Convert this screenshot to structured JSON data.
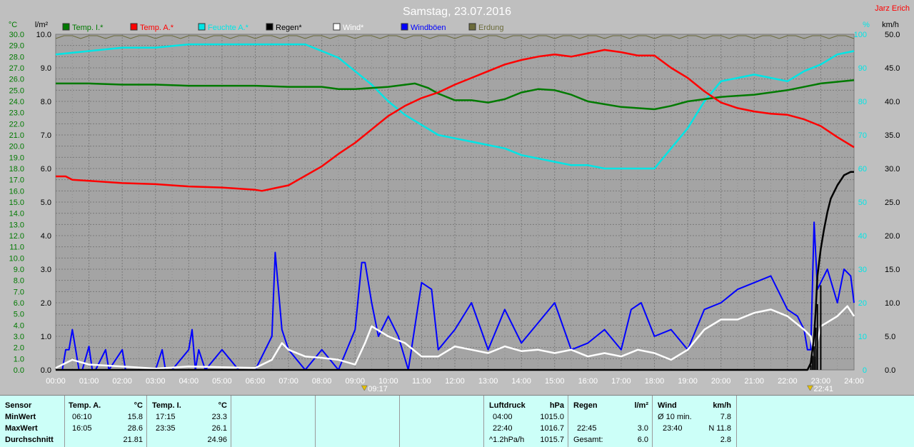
{
  "title": "Samstag, 23.07.2016",
  "author": "Jarz Erich",
  "axes": {
    "left1_unit": "°C",
    "left2_unit": "l/m²",
    "right1_unit": "%",
    "right2_unit": "km/h",
    "temp_ticks": [
      "0.0",
      "1.0",
      "2.0",
      "3.0",
      "4.0",
      "5.0",
      "6.0",
      "7.0",
      "8.0",
      "9.0",
      "10.0",
      "11.0",
      "12.0",
      "13.0",
      "14.0",
      "15.0",
      "16.0",
      "17.0",
      "18.0",
      "19.0",
      "20.0",
      "21.0",
      "22.0",
      "23.0",
      "24.0",
      "25.0",
      "26.0",
      "27.0",
      "28.0",
      "29.0",
      "30.0"
    ],
    "rain_ticks": [
      "0.0",
      "1.0",
      "2.0",
      "3.0",
      "4.0",
      "5.0",
      "6.0",
      "7.0",
      "8.0",
      "9.0",
      "10.0"
    ],
    "hum_ticks": [
      "0",
      "10",
      "20",
      "30",
      "40",
      "50",
      "60",
      "70",
      "80",
      "90",
      "100"
    ],
    "wind_ticks": [
      "0.0",
      "5.0",
      "10.0",
      "15.0",
      "20.0",
      "25.0",
      "30.0",
      "35.0",
      "40.0",
      "45.0",
      "50.0"
    ],
    "x_ticks": [
      "00:00",
      "01:00",
      "02:00",
      "03:00",
      "04:00",
      "05:00",
      "06:00",
      "07:00",
      "08:00",
      "09:00",
      "10:00",
      "11:00",
      "12:00",
      "13:00",
      "14:00",
      "15:00",
      "16:00",
      "17:00",
      "18:00",
      "19:00",
      "20:00",
      "21:00",
      "22:00",
      "23:00",
      "24:00"
    ]
  },
  "legend": [
    {
      "label": "Temp. I.*",
      "color": "#007a00"
    },
    {
      "label": "Temp. A.*",
      "color": "#ff0000"
    },
    {
      "label": "Feuchte A.*",
      "color": "#00e5e5"
    },
    {
      "label": "Regen*",
      "color": "#000000"
    },
    {
      "label": "Wind*",
      "color": "#ffffff"
    },
    {
      "label": "Windböen",
      "color": "#0000ff"
    },
    {
      "label": "Erdung",
      "color": "#6b6b3a"
    }
  ],
  "markers": [
    {
      "label": "09:17",
      "x": 9.28
    },
    {
      "label": "22:41",
      "x": 22.68
    }
  ],
  "chart_data": {
    "type": "line",
    "x_range": [
      0,
      24
    ],
    "series": [
      {
        "name": "Temp. I.*",
        "axis": "temp",
        "color": "#007a00",
        "x": [
          0,
          1,
          2,
          3,
          4,
          5,
          6,
          7,
          8,
          8.5,
          9,
          10,
          10.8,
          11.2,
          11.5,
          12,
          12.5,
          13,
          13.5,
          14,
          14.5,
          15,
          15.5,
          16,
          17,
          17.5,
          18,
          18.5,
          19,
          20,
          21,
          22,
          23,
          24
        ],
        "y": [
          25.6,
          25.6,
          25.5,
          25.5,
          25.4,
          25.4,
          25.4,
          25.3,
          25.3,
          25.1,
          25.1,
          25.3,
          25.6,
          25.2,
          24.7,
          24.1,
          24.1,
          23.9,
          24.2,
          24.8,
          25.1,
          25.0,
          24.6,
          24.0,
          23.5,
          23.4,
          23.3,
          23.6,
          24.0,
          24.4,
          24.6,
          25.0,
          25.6,
          25.9
        ]
      },
      {
        "name": "Temp. A.*",
        "axis": "temp",
        "color": "#ff0000",
        "x": [
          0,
          0.3,
          0.5,
          1,
          2,
          3,
          4,
          5,
          6,
          6.2,
          7,
          8,
          8.5,
          9,
          9.5,
          10,
          10.5,
          11,
          11.5,
          12,
          12.5,
          13,
          13.5,
          14,
          14.5,
          15,
          15.5,
          16,
          16.5,
          17,
          17.5,
          18,
          18.5,
          19,
          19.5,
          20,
          20.5,
          21,
          21.5,
          22,
          22.5,
          23,
          23.5,
          24
        ],
        "y": [
          17.3,
          17.3,
          17.0,
          16.9,
          16.7,
          16.6,
          16.4,
          16.3,
          16.1,
          16.0,
          16.5,
          18.2,
          19.3,
          20.3,
          21.5,
          22.7,
          23.6,
          24.3,
          24.8,
          25.5,
          26.1,
          26.7,
          27.3,
          27.7,
          28.0,
          28.2,
          28.0,
          28.3,
          28.6,
          28.4,
          28.1,
          28.1,
          27.0,
          26.1,
          24.9,
          23.9,
          23.4,
          23.1,
          22.9,
          22.8,
          22.4,
          21.8,
          20.8,
          19.9
        ]
      },
      {
        "name": "Feuchte A.*",
        "axis": "hum",
        "color": "#00e5e5",
        "x": [
          0,
          1,
          2,
          3,
          4,
          5,
          6,
          7,
          7.5,
          8,
          8.5,
          9,
          9.5,
          10,
          10.5,
          11,
          11.5,
          12,
          12.5,
          13,
          13.5,
          14,
          14.5,
          15,
          15.5,
          16,
          16.5,
          17,
          17.5,
          18,
          18.5,
          19,
          19.5,
          20,
          20.5,
          21,
          21.5,
          22,
          22.5,
          23,
          23.5,
          24
        ],
        "y": [
          94,
          95,
          96,
          96,
          97,
          97,
          97,
          97,
          97,
          95,
          93,
          89,
          85,
          80,
          76,
          73,
          70,
          69,
          68,
          67,
          66,
          64,
          63,
          62,
          61,
          61,
          60,
          60,
          60,
          60,
          66,
          72,
          80,
          86,
          87,
          88,
          87,
          86,
          89,
          91,
          94,
          95
        ]
      },
      {
        "name": "Regen*",
        "axis": "rain",
        "color": "#000000",
        "x": [
          0,
          22.6,
          22.7,
          22.75,
          22.8,
          22.85,
          22.9,
          23.0,
          23.1,
          23.2,
          23.3,
          23.5,
          23.7,
          23.9,
          24
        ],
        "y": [
          0,
          0,
          0.2,
          0.6,
          1.0,
          1.8,
          2.8,
          3.6,
          4.2,
          4.7,
          5.1,
          5.5,
          5.8,
          5.9,
          5.9
        ]
      },
      {
        "name": "Wind*",
        "axis": "wind",
        "color": "#ffffff",
        "x": [
          0,
          0.5,
          1,
          2,
          3,
          4,
          5,
          6,
          6.5,
          6.8,
          7,
          7.5,
          8,
          8.5,
          9,
          9.3,
          9.5,
          10,
          10.5,
          11,
          11.5,
          12,
          12.5,
          13,
          13.5,
          14,
          14.5,
          15,
          15.5,
          16,
          16.5,
          17,
          17.5,
          18,
          18.5,
          19,
          19.5,
          20,
          20.5,
          21,
          21.5,
          22,
          22.5,
          22.7,
          22.8,
          23,
          23.5,
          23.8,
          24
        ],
        "y": [
          0.3,
          1.5,
          0.8,
          0.5,
          0.2,
          0.5,
          0.4,
          0.3,
          1.5,
          4,
          3,
          2,
          1.8,
          1.5,
          0.8,
          4,
          6.5,
          5,
          4,
          2,
          2,
          3.5,
          3,
          2.5,
          3.5,
          2.8,
          3,
          2.5,
          3,
          2,
          2.5,
          2,
          3,
          2.5,
          1.5,
          3,
          6,
          7.5,
          7.5,
          8.5,
          9,
          8,
          6,
          5,
          2,
          6.5,
          8,
          9.5,
          8
        ]
      },
      {
        "name": "Windböen",
        "axis": "wind",
        "color": "#0000ff",
        "x": [
          0,
          0.2,
          0.3,
          0.4,
          0.5,
          0.6,
          0.7,
          0.8,
          1,
          1.1,
          1.2,
          1.5,
          1.6,
          2,
          2.1,
          2.5,
          3,
          3.2,
          3.3,
          3.5,
          4,
          4.1,
          4.2,
          4.3,
          4.5,
          5,
          5.5,
          6,
          6.3,
          6.5,
          6.6,
          6.8,
          7,
          7.5,
          8,
          8.5,
          9,
          9.2,
          9.3,
          9.5,
          9.7,
          10,
          10.3,
          10.6,
          11,
          11.3,
          11.5,
          12,
          12.5,
          13,
          13.5,
          14,
          14.5,
          15,
          15.5,
          16,
          16.5,
          17,
          17.3,
          17.6,
          18,
          18.5,
          19,
          19.5,
          20,
          20.5,
          21,
          21.5,
          22,
          22.3,
          22.5,
          22.6,
          22.7,
          22.8,
          22.9,
          23,
          23.2,
          23.5,
          23.7,
          23.9,
          24
        ],
        "y": [
          0,
          0,
          3,
          3,
          6,
          3,
          0,
          0,
          3.5,
          0,
          0,
          3,
          0,
          3,
          0,
          0,
          0,
          3,
          0,
          0,
          3,
          6,
          0,
          3,
          0,
          3,
          0,
          0,
          3,
          5,
          17.5,
          6,
          3,
          0,
          3,
          0,
          6,
          16,
          16,
          10,
          5,
          8,
          5,
          0,
          13,
          12,
          3,
          6,
          10,
          3,
          9,
          4,
          7,
          10,
          3,
          4,
          6,
          3,
          9,
          10,
          5,
          6,
          3,
          9,
          10,
          12,
          13,
          14,
          9,
          8,
          6,
          3,
          3,
          22,
          12,
          13,
          15,
          10,
          15,
          14,
          10
        ]
      }
    ]
  },
  "table": {
    "sensor": {
      "header": "Sensor",
      "rows": [
        "MinWert",
        "MaxWert",
        "Durchschnitt"
      ]
    },
    "temp_a": {
      "header": "Temp. A.",
      "unit": "°C",
      "times": [
        "06:10",
        "16:05",
        ""
      ],
      "values": [
        "15.8",
        "28.6",
        "21.81"
      ]
    },
    "temp_i": {
      "header": "Temp. I.",
      "unit": "°C",
      "times": [
        "17:15",
        "23:35",
        ""
      ],
      "values": [
        "23.3",
        "26.1",
        "24.96"
      ]
    },
    "pressure": {
      "header": "Luftdruck",
      "unit": "hPa",
      "times": [
        "04:00",
        "22:40",
        "^1.2hPa/h"
      ],
      "values": [
        "1015.0",
        "1016.7",
        "1015.7"
      ]
    },
    "rain": {
      "header": "Regen",
      "unit": "l/m²",
      "times": [
        "",
        "22:45",
        "Gesamt:"
      ],
      "values": [
        "",
        "3.0",
        "6.0"
      ]
    },
    "wind": {
      "header": "Wind",
      "unit": "km/h",
      "times": [
        "Ø 10 min.",
        "23:40",
        ""
      ],
      "values": [
        "7.8",
        "N 11.8",
        "2.8"
      ]
    }
  }
}
